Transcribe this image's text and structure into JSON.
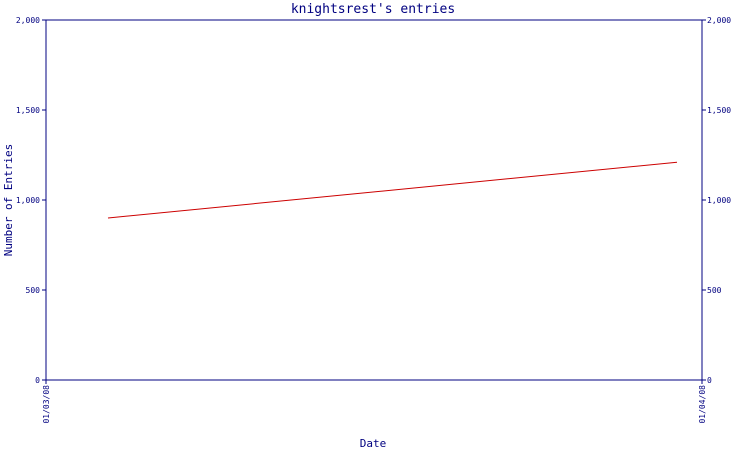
{
  "chart_data": {
    "type": "line",
    "title": "knightsrest's entries",
    "xlabel": "Date",
    "ylabel": "Number of Entries",
    "x_tick_labels": [
      "01/03/08",
      "01/04/08"
    ],
    "ylim": [
      0,
      2000
    ],
    "y_ticks": [
      0,
      500,
      1000,
      1500,
      2000
    ],
    "y_tick_labels": [
      "0",
      "500",
      "1,000",
      "1,500",
      "2,000"
    ],
    "grid": false,
    "series": [
      {
        "color": "#cc0000",
        "x": [
          "01/03/08 (approx. day 6)",
          "01/04/08 (approx. day -1)"
        ],
        "values": [
          900,
          1210
        ]
      }
    ],
    "colors": {
      "axis": "#000080",
      "text": "#000080",
      "line": "#cc0000",
      "background": "#ffffff"
    }
  }
}
